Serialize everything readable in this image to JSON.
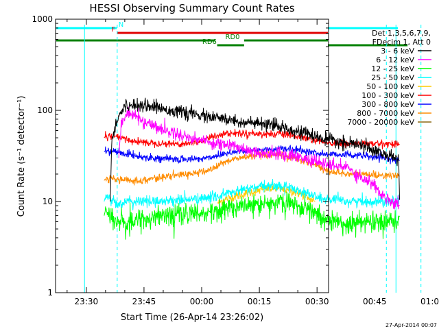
{
  "chart_data": {
    "type": "line",
    "title": "HESSI Observing Summary Count Rates",
    "xlabel": "Start Time (26-Apr-14 23:26:02)",
    "ylabel": "Count Rate (s⁻¹ detector⁻¹)",
    "ylog": true,
    "ylim": [
      1,
      1000
    ],
    "xlim_minutes_from_start": [
      -4.03,
      66.97
    ],
    "x_units": "minutes after 23:26:02 on 26-Apr-14",
    "x_tick_labels": [
      "23:30",
      "23:45",
      "00:00",
      "00:15",
      "00:30",
      "00:45",
      "01:00"
    ],
    "x_ticks_minutes": [
      3.97,
      18.97,
      33.97,
      48.97,
      63.97,
      78.97,
      93.97
    ],
    "y_tick_labels": [
      "1",
      "10",
      "100",
      "1000"
    ],
    "y_ticks": [
      1,
      10,
      100,
      1000
    ],
    "grid": false,
    "legend_position": "right",
    "legend_header": [
      "Det 1,3,5,6,7,9,",
      "FDecim 1, Att 0"
    ],
    "timestamp": "27-Apr-2014 00:07",
    "vlines": [
      {
        "t": 3.5,
        "color": "#00ffff",
        "dashed": false
      },
      {
        "t": 12.0,
        "color": "#00ffff",
        "dashed": true
      },
      {
        "t": 82.0,
        "color": "#00ffff",
        "dashed": true
      },
      {
        "t": 84.5,
        "color": "#00ffff",
        "dashed": false
      },
      {
        "t": 91.0,
        "color": "#00ffff",
        "dashed": true
      }
    ],
    "flag_bars": [
      {
        "label": "N",
        "color": "#00ffff",
        "row": 0,
        "label_t": 13.0,
        "segments": [
          [
            -4.03,
            11.9
          ],
          [
            85.0,
            91.3
          ]
        ]
      },
      {
        "label": "F",
        "color": "#e00000",
        "row": 1,
        "label_t": 11.0,
        "segments": [
          [
            12.0,
            81.5
          ]
        ]
      },
      {
        "label": "RD0",
        "color": "#008000",
        "row": 2,
        "label_t": 42.0,
        "segments": [
          [
            -4.03,
            37.5
          ],
          [
            45.0,
            87.5
          ]
        ]
      },
      {
        "label": "RD6",
        "color": "#008000",
        "row": 3,
        "label_t": 36.0,
        "segments": [
          [
            38.0,
            45.0
          ],
          [
            87.5,
            91.3
          ]
        ]
      }
    ],
    "series": [
      {
        "name": "3 - 6 keV",
        "color": "#000000",
        "noise": 0.035,
        "points": [
          [
            10.2,
            10
          ],
          [
            10.6,
            50
          ],
          [
            12.5,
            90
          ],
          [
            14,
            110
          ],
          [
            17,
            117
          ],
          [
            20,
            113
          ],
          [
            26,
            100
          ],
          [
            32,
            90
          ],
          [
            38,
            82
          ],
          [
            44,
            75
          ],
          [
            50,
            70
          ],
          [
            55,
            65
          ],
          [
            60,
            58
          ],
          [
            63,
            52
          ],
          [
            67,
            47
          ],
          [
            71,
            44
          ],
          [
            74,
            42
          ],
          [
            77,
            40
          ],
          [
            80,
            35
          ],
          [
            83,
            31
          ],
          [
            85.2,
            30
          ],
          [
            85.5,
            8
          ]
        ]
      },
      {
        "name": "6 - 12 keV",
        "color": "#ff00ff",
        "noise": 0.035,
        "points": [
          [
            12.4,
            30
          ],
          [
            13,
            70
          ],
          [
            14.5,
            92
          ],
          [
            16,
            90
          ],
          [
            19,
            75
          ],
          [
            23,
            64
          ],
          [
            27,
            56
          ],
          [
            31,
            50
          ],
          [
            35,
            46
          ],
          [
            38,
            43
          ],
          [
            40,
            42
          ],
          [
            43,
            40
          ],
          [
            47,
            36
          ],
          [
            50,
            34
          ],
          [
            54,
            33
          ],
          [
            58,
            32
          ],
          [
            61,
            29
          ],
          [
            64,
            27
          ],
          [
            67,
            25
          ],
          [
            70,
            24
          ],
          [
            72,
            24
          ],
          [
            74,
            20
          ],
          [
            77,
            17
          ],
          [
            79,
            15
          ],
          [
            80.5,
            12
          ],
          [
            82,
            11
          ],
          [
            84.5,
            9.5
          ],
          [
            85.5,
            9
          ]
        ]
      },
      {
        "name": "12 - 25 keV",
        "color": "#00ff00",
        "noise": 0.05,
        "spiky": true,
        "points": [
          [
            8.6,
            7
          ],
          [
            9,
            8.2
          ],
          [
            12,
            6
          ],
          [
            16,
            6.5
          ],
          [
            20,
            6.8
          ],
          [
            25,
            7.2
          ],
          [
            30,
            7.5
          ],
          [
            35,
            7.8
          ],
          [
            40,
            8.5
          ],
          [
            45,
            9.3
          ],
          [
            50,
            10
          ],
          [
            53,
            10.3
          ],
          [
            56,
            10
          ],
          [
            60,
            9
          ],
          [
            63,
            7.8
          ],
          [
            66,
            6.8
          ],
          [
            70,
            6.2
          ],
          [
            75,
            6.2
          ],
          [
            80,
            6
          ],
          [
            85,
            6.5
          ],
          [
            85.5,
            7
          ]
        ]
      },
      {
        "name": "25 - 50 keV",
        "color": "#00ffff",
        "noise": 0.03,
        "points": [
          [
            8.6,
            10
          ],
          [
            9,
            11.5
          ],
          [
            12,
            9.5
          ],
          [
            16,
            10
          ],
          [
            20,
            10
          ],
          [
            25,
            10.2
          ],
          [
            30,
            10.5
          ],
          [
            35,
            10.8
          ],
          [
            40,
            12
          ],
          [
            45,
            13.5
          ],
          [
            50,
            14.5
          ],
          [
            53,
            15
          ],
          [
            56,
            14.5
          ],
          [
            60,
            13
          ],
          [
            63,
            11.5
          ],
          [
            66,
            10.5
          ],
          [
            70,
            10.2
          ],
          [
            75,
            10
          ],
          [
            80,
            10
          ],
          [
            85,
            10.5
          ],
          [
            85.5,
            11
          ]
        ]
      },
      {
        "name": "50 - 100 keV",
        "color": "#ffcc00",
        "noise": 0.025,
        "points": [
          [
            38,
            9.6
          ],
          [
            40,
            10.5
          ],
          [
            44,
            11.8
          ],
          [
            48,
            13
          ],
          [
            51,
            13.8
          ],
          [
            54,
            13.8
          ],
          [
            57,
            13
          ],
          [
            60,
            12
          ],
          [
            62.5,
            10.5
          ],
          [
            63.5,
            10
          ]
        ]
      },
      {
        "name": "100 - 300 keV",
        "color": "#ff0000",
        "noise": 0.02,
        "points": [
          [
            8.6,
            50
          ],
          [
            9,
            52
          ],
          [
            12,
            51
          ],
          [
            15,
            47
          ],
          [
            18,
            45
          ],
          [
            22,
            44
          ],
          [
            26,
            43
          ],
          [
            30,
            43
          ],
          [
            34,
            46
          ],
          [
            37,
            52
          ],
          [
            39,
            55
          ],
          [
            42,
            56
          ],
          [
            46,
            56
          ],
          [
            50,
            55
          ],
          [
            54,
            55
          ],
          [
            58,
            52
          ],
          [
            62,
            48
          ],
          [
            66,
            44
          ],
          [
            70,
            43
          ],
          [
            75,
            43
          ],
          [
            80,
            43
          ],
          [
            85,
            43
          ],
          [
            85.5,
            42
          ]
        ]
      },
      {
        "name": "300 - 800 keV",
        "color": "#0000ff",
        "noise": 0.02,
        "points": [
          [
            8.6,
            35
          ],
          [
            9,
            36
          ],
          [
            12,
            35
          ],
          [
            15,
            33
          ],
          [
            18,
            31
          ],
          [
            22,
            30
          ],
          [
            26,
            29
          ],
          [
            30,
            29
          ],
          [
            34,
            29.5
          ],
          [
            37,
            31
          ],
          [
            39,
            33
          ],
          [
            42,
            35
          ],
          [
            46,
            36
          ],
          [
            50,
            37
          ],
          [
            54,
            38
          ],
          [
            58,
            37
          ],
          [
            62,
            35
          ],
          [
            66,
            33
          ],
          [
            70,
            33
          ],
          [
            75,
            32
          ],
          [
            80,
            30
          ],
          [
            84,
            29
          ],
          [
            85.5,
            28
          ]
        ]
      },
      {
        "name": "800 - 7000 keV",
        "color": "#ff8c00",
        "noise": 0.02,
        "points": [
          [
            8.6,
            17
          ],
          [
            9,
            18
          ],
          [
            12,
            17.5
          ],
          [
            15,
            17
          ],
          [
            18,
            17
          ],
          [
            22,
            18
          ],
          [
            26,
            19
          ],
          [
            30,
            20
          ],
          [
            34,
            21
          ],
          [
            37,
            23
          ],
          [
            39,
            26
          ],
          [
            42,
            29
          ],
          [
            46,
            31
          ],
          [
            50,
            32
          ],
          [
            54,
            32
          ],
          [
            58,
            30
          ],
          [
            62,
            27
          ],
          [
            64,
            25
          ],
          [
            66,
            22
          ],
          [
            70,
            20.5
          ],
          [
            75,
            20
          ],
          [
            80,
            19.5
          ],
          [
            85,
            19
          ],
          [
            85.5,
            19
          ]
        ]
      },
      {
        "name": "7000 - 20000 keV",
        "color": "#8b6914",
        "noise": 0.0,
        "points": []
      }
    ]
  }
}
